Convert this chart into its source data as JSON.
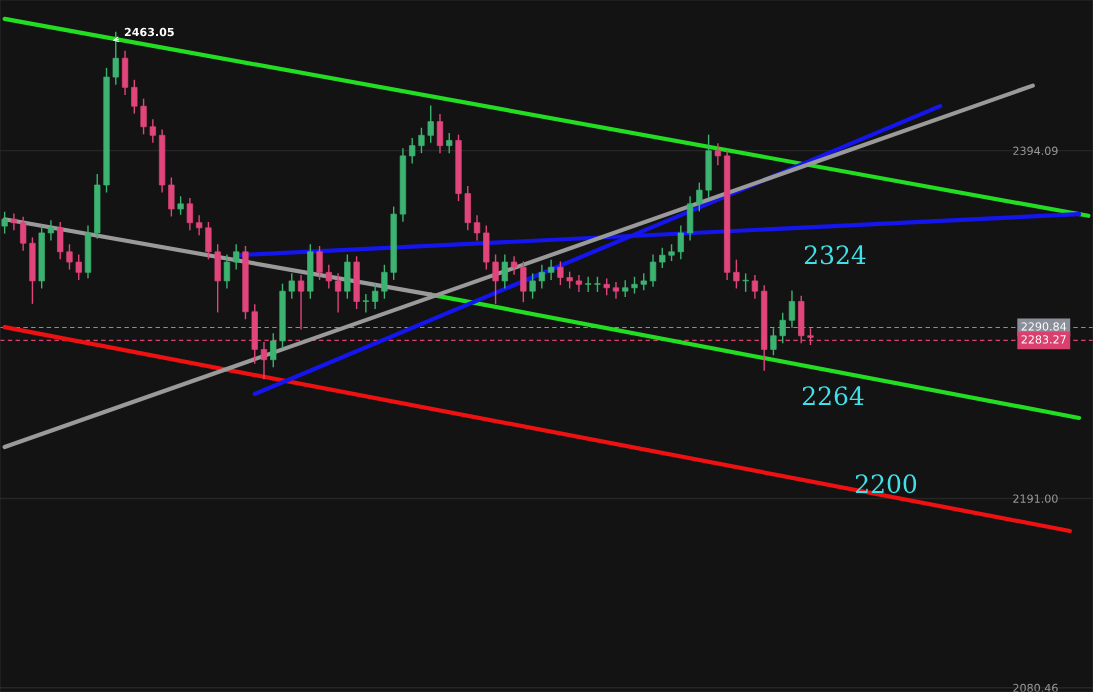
{
  "chart_data": {
    "type": "candlestick",
    "categories": [
      null,
      null,
      null,
      null,
      null,
      null,
      null,
      null,
      null,
      null,
      null,
      null,
      null,
      null,
      null,
      null,
      null,
      null,
      null,
      null,
      null,
      null,
      null,
      null,
      null,
      null,
      null,
      null,
      null,
      null,
      null,
      null,
      null,
      null,
      null,
      null,
      null,
      null,
      null,
      null,
      null,
      null,
      null,
      null,
      null,
      null,
      null,
      null,
      null,
      null,
      null,
      null,
      null,
      null,
      null,
      null,
      null,
      null,
      null,
      null,
      null,
      null,
      null,
      null,
      null,
      null,
      null,
      null,
      null,
      null,
      null,
      null,
      null,
      null,
      null,
      null,
      null,
      null,
      null,
      null,
      null,
      null,
      null,
      null,
      null,
      null,
      null,
      null,
      null,
      null,
      null,
      null,
      null,
      null,
      null,
      null,
      null,
      null,
      null,
      null,
      null,
      null,
      null,
      null,
      null,
      null,
      null,
      null,
      null,
      null,
      null,
      null,
      null,
      null,
      null,
      null,
      null,
      null
    ],
    "ohlc": [
      [
        2350,
        2358,
        2346,
        2354
      ],
      [
        2354,
        2357,
        2348,
        2352
      ],
      [
        2352,
        2355,
        2336,
        2340
      ],
      [
        2340,
        2343,
        2305,
        2318
      ],
      [
        2318,
        2350,
        2314,
        2346
      ],
      [
        2346,
        2353,
        2342,
        2349
      ],
      [
        2349,
        2352,
        2331,
        2335
      ],
      [
        2335,
        2339,
        2325,
        2329
      ],
      [
        2329,
        2333,
        2319,
        2323
      ],
      [
        2323,
        2350,
        2320,
        2346
      ],
      [
        2346,
        2380,
        2343,
        2374
      ],
      [
        2374,
        2442,
        2370,
        2437
      ],
      [
        2437,
        2463.05,
        2433,
        2448
      ],
      [
        2448,
        2452,
        2427,
        2431
      ],
      [
        2431,
        2435,
        2416,
        2420
      ],
      [
        2420,
        2424,
        2404,
        2408
      ],
      [
        2408,
        2412,
        2399,
        2403
      ],
      [
        2403,
        2406,
        2370,
        2374
      ],
      [
        2374,
        2378,
        2356,
        2360
      ],
      [
        2360,
        2367,
        2357,
        2363
      ],
      [
        2363,
        2366,
        2348,
        2352
      ],
      [
        2352,
        2356,
        2345,
        2349
      ],
      [
        2349,
        2352,
        2331,
        2335
      ],
      [
        2335,
        2339,
        2300,
        2318
      ],
      [
        2318,
        2333,
        2314,
        2329
      ],
      [
        2329,
        2339,
        2325,
        2335
      ],
      [
        2335,
        2338,
        2296,
        2300
      ],
      [
        2300,
        2304,
        2270,
        2278
      ],
      [
        2278,
        2282,
        2261,
        2272
      ],
      [
        2272,
        2287,
        2268,
        2283
      ],
      [
        2283,
        2316,
        2279,
        2312
      ],
      [
        2312,
        2322,
        2308,
        2318
      ],
      [
        2318,
        2321,
        2290,
        2312
      ],
      [
        2312,
        2339,
        2308,
        2335
      ],
      [
        2335,
        2338,
        2319,
        2323
      ],
      [
        2323,
        2327,
        2314,
        2318
      ],
      [
        2318,
        2322,
        2300,
        2312
      ],
      [
        2312,
        2333,
        2308,
        2329
      ],
      [
        2329,
        2332,
        2302,
        2306
      ],
      [
        2306,
        2310,
        2300,
        2306
      ],
      [
        2306,
        2316,
        2302,
        2312
      ],
      [
        2312,
        2327,
        2308,
        2323
      ],
      [
        2323,
        2361,
        2319,
        2357
      ],
      [
        2357,
        2395,
        2353,
        2391
      ],
      [
        2391,
        2401,
        2387,
        2397
      ],
      [
        2397,
        2407,
        2393,
        2403
      ],
      [
        2403,
        2420,
        2399,
        2411
      ],
      [
        2411,
        2415,
        2393,
        2397
      ],
      [
        2397,
        2404,
        2393,
        2400
      ],
      [
        2400,
        2403,
        2365,
        2369
      ],
      [
        2369,
        2373,
        2348,
        2352
      ],
      [
        2352,
        2356,
        2342,
        2346
      ],
      [
        2346,
        2350,
        2325,
        2329
      ],
      [
        2329,
        2333,
        2305,
        2318
      ],
      [
        2318,
        2333,
        2314,
        2329
      ],
      [
        2329,
        2332,
        2322,
        2326
      ],
      [
        2326,
        2329,
        2306,
        2312
      ],
      [
        2312,
        2322,
        2308,
        2318
      ],
      [
        2318,
        2327,
        2314,
        2323
      ],
      [
        2323,
        2330,
        2319,
        2326
      ],
      [
        2326,
        2329,
        2316,
        2320
      ],
      [
        2320,
        2323,
        2314,
        2318
      ],
      [
        2318,
        2321,
        2312,
        2316
      ],
      [
        2316,
        2320,
        2312,
        2316
      ],
      [
        2316,
        2320,
        2312,
        2316
      ],
      [
        2316,
        2319,
        2310,
        2314
      ],
      [
        2314,
        2317,
        2308,
        2312
      ],
      [
        2312,
        2318,
        2309,
        2314
      ],
      [
        2314,
        2320,
        2311,
        2316
      ],
      [
        2316,
        2322,
        2313,
        2318
      ],
      [
        2318,
        2333,
        2315,
        2329
      ],
      [
        2329,
        2337,
        2326,
        2333
      ],
      [
        2333,
        2339,
        2330,
        2335
      ],
      [
        2335,
        2350,
        2331,
        2346
      ],
      [
        2346,
        2367,
        2342,
        2363
      ],
      [
        2363,
        2375,
        2359,
        2371
      ],
      [
        2371,
        2403,
        2367,
        2394
      ],
      [
        2394,
        2398,
        2386,
        2391
      ],
      [
        2391,
        2394,
        2319,
        2323
      ],
      [
        2323,
        2330,
        2314,
        2318
      ],
      [
        2318,
        2322,
        2312,
        2318
      ],
      [
        2318,
        2321,
        2308,
        2312
      ],
      [
        2312,
        2315,
        2266,
        2278
      ],
      [
        2278,
        2290,
        2275,
        2286
      ],
      [
        2286,
        2299,
        2282,
        2295
      ],
      [
        2295,
        2312,
        2291,
        2306
      ],
      [
        2306,
        2309,
        2282,
        2286
      ],
      [
        2286,
        2290,
        2281,
        2285
      ],
      null,
      null,
      null,
      null,
      null,
      null,
      null,
      null,
      null,
      null,
      null,
      null,
      null,
      null,
      null,
      null,
      null,
      null,
      null,
      null,
      null,
      null,
      null,
      null,
      null,
      null,
      null,
      null,
      null,
      null
    ],
    "colors": [
      "#3cb371",
      "#e0457b",
      "#e0457b",
      "#e0457b",
      "#3cb371",
      "#3cb371",
      "#e0457b",
      "#e0457b",
      "#e0457b",
      "#3cb371",
      "#3cb371",
      "#3cb371",
      "#3cb371",
      "#e0457b",
      "#e0457b",
      "#e0457b",
      "#e0457b",
      "#e0457b",
      "#e0457b",
      "#3cb371",
      "#e0457b",
      "#e0457b",
      "#e0457b",
      "#e0457b",
      "#3cb371",
      "#3cb371",
      "#e0457b",
      "#e0457b",
      "#e0457b",
      "#3cb371",
      "#3cb371",
      "#3cb371",
      "#e0457b",
      "#3cb371",
      "#e0457b",
      "#e0457b",
      "#e0457b",
      "#3cb371",
      "#e0457b",
      "#3cb371",
      "#3cb371",
      "#3cb371",
      "#3cb371",
      "#3cb371",
      "#3cb371",
      "#3cb371",
      "#3cb371",
      "#e0457b",
      "#3cb371",
      "#e0457b",
      "#e0457b",
      "#e0457b",
      "#e0457b",
      "#e0457b",
      "#3cb371",
      "#e0457b",
      "#e0457b",
      "#3cb371",
      "#3cb371",
      "#3cb371",
      "#e0457b",
      "#e0457b",
      "#e0457b",
      "#3cb371",
      "#3cb371",
      "#e0457b",
      "#e0457b",
      "#3cb371",
      "#3cb371",
      "#3cb371",
      "#3cb371",
      "#3cb371",
      "#3cb371",
      "#3cb371",
      "#3cb371",
      "#3cb371",
      "#3cb371",
      "#e0457b",
      "#e0457b",
      "#e0457b",
      "#3cb371",
      "#e0457b",
      "#e0457b",
      "#3cb371",
      "#3cb371",
      "#3cb371",
      "#e0457b",
      "#e0457b",
      null,
      null,
      null,
      null,
      null,
      null,
      null,
      null,
      null,
      null,
      null,
      null,
      null,
      null,
      null,
      null,
      null,
      null,
      null,
      null,
      null,
      null,
      null,
      null,
      null,
      null,
      null,
      null,
      null,
      null
    ],
    "series": [
      {
        "type": "line",
        "color": "#22dd22",
        "values": [
          2471,
          null,
          null,
          null,
          null,
          null,
          null,
          null,
          null,
          null,
          null,
          null,
          null,
          null,
          null,
          null,
          null,
          null,
          null,
          null,
          null,
          null,
          null,
          null,
          null,
          null,
          null,
          null,
          null,
          null,
          null,
          null,
          null,
          null,
          null,
          null,
          null,
          null,
          null,
          null,
          null,
          null,
          null,
          null,
          null,
          null,
          null,
          null,
          null,
          null,
          null,
          null,
          null,
          null,
          null,
          null,
          null,
          null,
          null,
          null,
          null,
          null,
          null,
          null,
          null,
          null,
          null,
          null,
          null,
          null,
          null,
          null,
          null,
          null,
          null,
          null,
          null,
          null,
          null,
          null,
          null,
          null,
          null,
          null,
          null,
          null,
          null,
          null,
          null,
          null,
          null,
          null,
          null,
          null,
          null,
          null,
          null,
          null,
          null,
          null,
          null,
          null,
          null,
          null,
          null,
          null,
          null,
          null,
          null,
          null,
          null,
          null,
          null,
          null,
          null,
          null,
          null,
          2356
        ]
      },
      {
        "type": "line",
        "color": "#22dd22",
        "values": [
          null,
          null,
          null,
          null,
          null,
          null,
          null,
          null,
          null,
          null,
          null,
          null,
          null,
          null,
          null,
          null,
          null,
          null,
          null,
          null,
          null,
          null,
          null,
          null,
          null,
          null,
          null,
          null,
          null,
          null,
          null,
          null,
          null,
          null,
          null,
          null,
          null,
          null,
          null,
          null,
          null,
          null,
          null,
          null,
          null,
          null,
          2310,
          null,
          null,
          null,
          null,
          null,
          null,
          null,
          null,
          null,
          null,
          null,
          null,
          null,
          null,
          null,
          null,
          null,
          null,
          null,
          null,
          null,
          null,
          null,
          null,
          null,
          null,
          null,
          null,
          null,
          null,
          null,
          null,
          null,
          null,
          null,
          null,
          null,
          null,
          null,
          null,
          null,
          null,
          null,
          null,
          null,
          null,
          null,
          null,
          null,
          null,
          null,
          null,
          null,
          null,
          null,
          null,
          null,
          null,
          null,
          null,
          null,
          null,
          null,
          null,
          null,
          null,
          null,
          null,
          null,
          2238,
          null
        ]
      },
      {
        "type": "line",
        "color": "#ee1111",
        "values": [
          2291,
          null,
          null,
          null,
          null,
          null,
          null,
          null,
          null,
          null,
          null,
          null,
          null,
          null,
          null,
          null,
          null,
          null,
          null,
          null,
          null,
          null,
          null,
          null,
          null,
          null,
          null,
          null,
          null,
          null,
          null,
          null,
          null,
          null,
          null,
          null,
          null,
          null,
          null,
          null,
          null,
          null,
          null,
          null,
          null,
          null,
          null,
          null,
          null,
          null,
          null,
          null,
          null,
          null,
          null,
          null,
          null,
          null,
          null,
          null,
          null,
          null,
          null,
          null,
          null,
          null,
          null,
          null,
          null,
          null,
          null,
          null,
          null,
          null,
          null,
          null,
          null,
          null,
          null,
          null,
          null,
          null,
          null,
          null,
          null,
          null,
          null,
          null,
          null,
          null,
          null,
          null,
          null,
          null,
          null,
          null,
          null,
          null,
          null,
          null,
          null,
          null,
          null,
          null,
          null,
          null,
          null,
          null,
          null,
          null,
          null,
          null,
          null,
          null,
          null,
          2172,
          null,
          null
        ]
      },
      {
        "type": "line",
        "color": "#1515ee",
        "values": [
          null,
          null,
          null,
          null,
          null,
          null,
          null,
          null,
          null,
          null,
          null,
          null,
          null,
          null,
          null,
          null,
          null,
          null,
          null,
          null,
          null,
          null,
          null,
          null,
          null,
          null,
          null,
          2252,
          null,
          null,
          null,
          null,
          null,
          null,
          null,
          null,
          null,
          null,
          null,
          null,
          null,
          null,
          null,
          null,
          null,
          null,
          null,
          null,
          null,
          null,
          null,
          null,
          null,
          null,
          null,
          null,
          null,
          null,
          null,
          null,
          null,
          null,
          null,
          null,
          null,
          null,
          null,
          null,
          null,
          null,
          null,
          null,
          null,
          null,
          null,
          null,
          null,
          null,
          null,
          null,
          null,
          null,
          null,
          null,
          null,
          null,
          null,
          null,
          null,
          null,
          null,
          null,
          null,
          null,
          null,
          null,
          null,
          null,
          null,
          null,
          null,
          2420,
          null,
          null,
          null,
          null,
          null,
          null,
          null,
          null,
          null,
          null,
          null,
          null,
          null,
          null,
          null,
          null
        ]
      },
      {
        "type": "line",
        "color": "#1515ee",
        "values": [
          null,
          null,
          null,
          null,
          null,
          null,
          null,
          null,
          null,
          null,
          null,
          null,
          null,
          null,
          null,
          null,
          null,
          null,
          null,
          null,
          null,
          null,
          null,
          null,
          null,
          2333,
          null,
          null,
          null,
          null,
          null,
          null,
          null,
          null,
          null,
          null,
          null,
          null,
          null,
          null,
          null,
          null,
          null,
          null,
          null,
          null,
          null,
          null,
          null,
          null,
          null,
          null,
          null,
          null,
          null,
          null,
          null,
          null,
          null,
          null,
          null,
          null,
          null,
          null,
          null,
          null,
          null,
          null,
          null,
          null,
          null,
          null,
          null,
          null,
          null,
          null,
          null,
          null,
          null,
          null,
          null,
          null,
          null,
          null,
          null,
          null,
          null,
          null,
          null,
          null,
          null,
          null,
          null,
          null,
          null,
          null,
          null,
          null,
          null,
          null,
          null,
          null,
          null,
          null,
          null,
          null,
          null,
          null,
          null,
          null,
          null,
          null,
          null,
          null,
          null,
          null,
          2357,
          null
        ]
      },
      {
        "type": "line",
        "color": "#9a9a9a",
        "values": [
          2221,
          null,
          null,
          null,
          null,
          null,
          null,
          null,
          null,
          null,
          null,
          null,
          null,
          null,
          null,
          null,
          null,
          null,
          null,
          null,
          null,
          null,
          null,
          null,
          null,
          null,
          null,
          null,
          null,
          null,
          null,
          null,
          null,
          null,
          null,
          null,
          null,
          null,
          null,
          null,
          null,
          null,
          null,
          null,
          null,
          null,
          null,
          null,
          null,
          null,
          null,
          null,
          null,
          null,
          null,
          null,
          null,
          null,
          null,
          null,
          null,
          null,
          null,
          null,
          null,
          null,
          null,
          null,
          null,
          null,
          null,
          null,
          null,
          null,
          null,
          null,
          null,
          null,
          null,
          null,
          null,
          null,
          null,
          null,
          null,
          null,
          null,
          null,
          null,
          null,
          null,
          null,
          null,
          null,
          null,
          null,
          null,
          null,
          null,
          null,
          null,
          null,
          null,
          null,
          null,
          null,
          null,
          null,
          null,
          null,
          null,
          2432,
          null,
          null,
          null,
          null,
          null,
          null
        ]
      },
      {
        "type": "line",
        "color": "#9a9a9a",
        "values": [
          2354,
          null,
          null,
          null,
          null,
          null,
          null,
          null,
          null,
          null,
          null,
          null,
          null,
          null,
          null,
          null,
          null,
          null,
          null,
          null,
          null,
          null,
          null,
          null,
          null,
          null,
          null,
          null,
          null,
          null,
          null,
          null,
          null,
          null,
          null,
          null,
          null,
          null,
          null,
          null,
          null,
          null,
          null,
          null,
          null,
          null,
          2310,
          null,
          null,
          null,
          null,
          null,
          null,
          null,
          null,
          null,
          null,
          null,
          null,
          null,
          null,
          null,
          null,
          null,
          null,
          null,
          null,
          null,
          null,
          null,
          null,
          null,
          null,
          null,
          null,
          null,
          null,
          null,
          null,
          null,
          null,
          null,
          null,
          null,
          null,
          null,
          null,
          null,
          null,
          null,
          null,
          null,
          null,
          null,
          null,
          null,
          null,
          null,
          null,
          null,
          null,
          null,
          null,
          null,
          null,
          null,
          null,
          null,
          null,
          null,
          null,
          null,
          null,
          null,
          null,
          null,
          null,
          null
        ]
      }
    ],
    "ylim": [
      2078,
      2482
    ],
    "yticks": [
      2394.09,
      {
        "value": 2191,
        "label": "2191.00"
      },
      2080.46
    ],
    "tick_labels": "y",
    "grid": "y",
    "ref_lines": [
      {
        "axis": "y",
        "value": 2290.84,
        "label": "2290.84",
        "color": "#8a8f99",
        "line_style": "dashed"
      },
      {
        "axis": "y",
        "value": 2283.27,
        "label": "2283.27",
        "color": "#d9406e",
        "line_style": "dashed"
      }
    ],
    "annotations": [
      "2463.05",
      "2324",
      "2264",
      "2200"
    ]
  }
}
